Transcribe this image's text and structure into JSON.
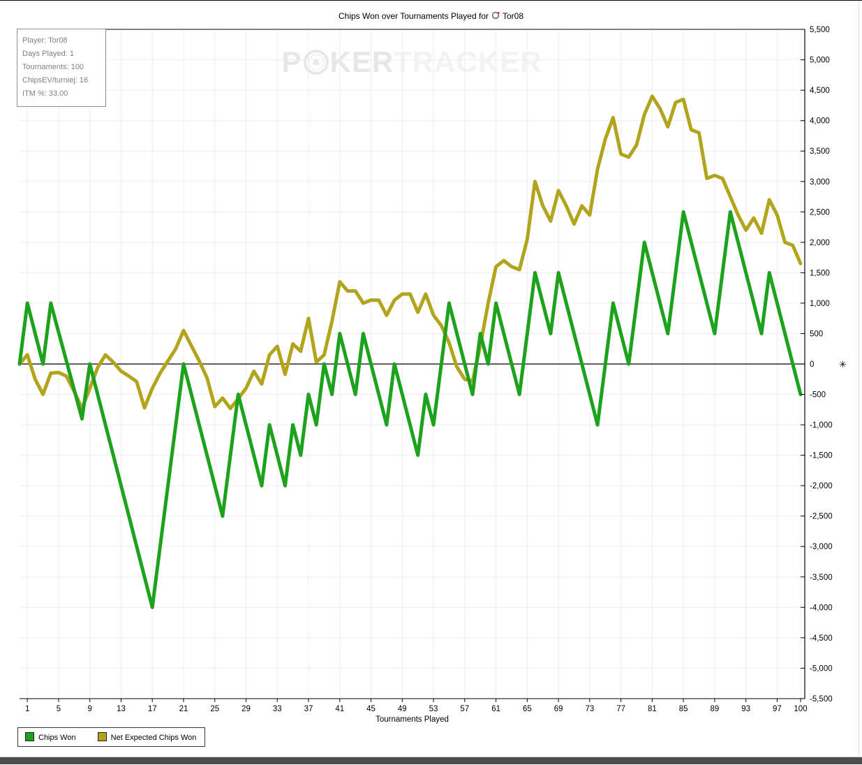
{
  "title": {
    "prefix": "Chips Won over Tournaments Played for",
    "player": "Tor08",
    "icon": "player-icon"
  },
  "info_box": {
    "lines": [
      "Player: Tor08",
      "Days Played: 1",
      "Tournaments: 100",
      "ChipsEV/turniej: 16",
      "ITM %: 33.00"
    ]
  },
  "watermark": {
    "part1": "P",
    "part2": "KER",
    "part3": "TRACKER",
    "chip_icon": "poker-chip-icon",
    "color_dark": "#e7e7e7",
    "color_light": "#f3f3f3"
  },
  "legend": {
    "items": [
      {
        "label": "Chips Won",
        "color": "#1da21d"
      },
      {
        "label": "Net Expected Chips Won",
        "color": "#b2a51d"
      }
    ]
  },
  "chart_data": {
    "type": "line",
    "title": "Chips Won over Tournaments Played for Tor08",
    "xlabel": "Tournaments Played",
    "ylabel": "",
    "x_start": 0,
    "x_range": [
      0,
      100
    ],
    "ylim": [
      -5500,
      5500
    ],
    "y_tick_step": 500,
    "grid": true,
    "legend_position": "bottom-left",
    "x_ticks": [
      1,
      5,
      9,
      13,
      17,
      21,
      25,
      29,
      33,
      37,
      41,
      45,
      49,
      53,
      57,
      61,
      65,
      69,
      73,
      77,
      81,
      85,
      89,
      93,
      97,
      100
    ],
    "marker_symbol": "✳",
    "colors": {
      "grid": "#ededed",
      "axis": "#000000",
      "zero_line": "#000000",
      "text": "#000000"
    },
    "series": [
      {
        "name": "Chips Won",
        "color": "#1da21d",
        "values": [
          0,
          1000,
          500,
          0,
          1000,
          525,
          50,
          -425,
          -900,
          0,
          -500,
          -1000,
          -1500,
          -2000,
          -2500,
          -3000,
          -3500,
          -4000,
          -3000,
          -2000,
          -1000,
          0,
          -500,
          -1000,
          -1500,
          -2000,
          -2500,
          -1500,
          -500,
          -1000,
          -1500,
          -2000,
          -1000,
          -1500,
          -2000,
          -1000,
          -1500,
          -500,
          -1000,
          0,
          -500,
          500,
          0,
          -500,
          500,
          0,
          -500,
          -1000,
          0,
          -500,
          -1000,
          -1500,
          -500,
          -1000,
          0,
          1000,
          500,
          0,
          -500,
          500,
          0,
          1000,
          500,
          0,
          -500,
          500,
          1500,
          1000,
          500,
          1500,
          1000,
          500,
          0,
          -500,
          -1000,
          0,
          1000,
          500,
          0,
          1000,
          2000,
          1500,
          1000,
          500,
          1500,
          2500,
          2000,
          1500,
          1000,
          500,
          1500,
          2500,
          2000,
          1500,
          1000,
          500,
          1500,
          1000,
          500,
          0,
          -500
        ]
      },
      {
        "name": "Net Expected Chips Won",
        "color": "#b2a51d",
        "values": [
          0,
          150,
          -250,
          -500,
          -150,
          -140,
          -200,
          -450,
          -730,
          -400,
          -60,
          150,
          30,
          -120,
          -200,
          -290,
          -720,
          -400,
          -150,
          50,
          250,
          550,
          300,
          50,
          -230,
          -700,
          -560,
          -730,
          -570,
          -400,
          -120,
          -330,
          150,
          290,
          -170,
          330,
          210,
          750,
          30,
          150,
          700,
          1350,
          1200,
          1200,
          1000,
          1050,
          1050,
          800,
          1050,
          1150,
          1150,
          850,
          1150,
          800,
          630,
          350,
          -50,
          -250,
          -280,
          300,
          1000,
          1600,
          1700,
          1600,
          1550,
          2050,
          3000,
          2600,
          2350,
          2850,
          2600,
          2300,
          2600,
          2450,
          3200,
          3700,
          4050,
          3450,
          3400,
          3600,
          4100,
          4400,
          4200,
          3900,
          4300,
          4350,
          3850,
          3800,
          3050,
          3100,
          3050,
          2750,
          2450,
          2200,
          2400,
          2150,
          2700,
          2450,
          2000,
          1950,
          1650
        ]
      }
    ]
  }
}
